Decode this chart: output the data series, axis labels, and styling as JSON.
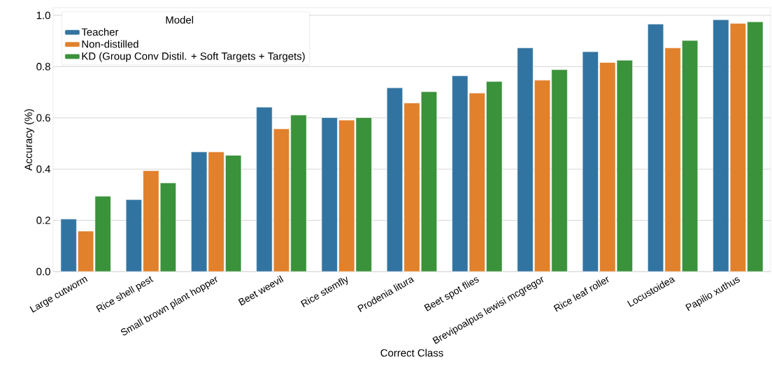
{
  "chart_data": {
    "type": "bar",
    "xlabel": "Correct Class",
    "ylabel": "Accuracy (%)",
    "legend_title": "Model",
    "categories": [
      "Large cutworm",
      "Rice shell pest",
      "Small brown plant hopper",
      "Beet weevil",
      "Rice stemfly",
      "Prodenia litura",
      "Beet spot flies",
      "Brevipoalpus lewisi mcgregor",
      "Rice leaf roller",
      "Locustoidea",
      "Papilio xuthus"
    ],
    "series": [
      {
        "name": "Teacher",
        "color": "#3274a1",
        "values": [
          0.205,
          0.281,
          0.467,
          0.642,
          0.601,
          0.717,
          0.764,
          0.873,
          0.858,
          0.966,
          0.983
        ]
      },
      {
        "name": "Non-distilled",
        "color": "#e1812c",
        "values": [
          0.158,
          0.394,
          0.467,
          0.557,
          0.591,
          0.658,
          0.697,
          0.747,
          0.816,
          0.873,
          0.969
        ]
      },
      {
        "name": "KD (Group Conv Distil. + Soft Targets + Targets)",
        "color": "#3a923a",
        "values": [
          0.294,
          0.346,
          0.454,
          0.611,
          0.601,
          0.702,
          0.742,
          0.788,
          0.825,
          0.902,
          0.975
        ]
      }
    ],
    "ylim": [
      0,
      1.03
    ],
    "yticks": [
      {
        "value": 0,
        "label": "0.0"
      },
      0.2,
      0.4,
      0.6,
      0.8,
      {
        "value": 1,
        "label": "1.0"
      }
    ],
    "grid": "y",
    "legend": "top left"
  }
}
